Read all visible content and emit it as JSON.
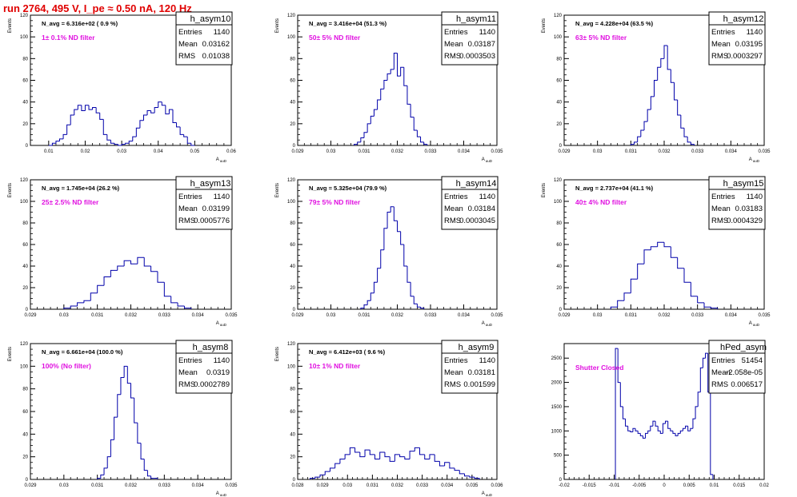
{
  "run_title": "run 2764,   495 V, I_pe ≈ 0.50 nA, 120 Hz",
  "stat_labels": {
    "entries": "Entries",
    "mean": "Mean",
    "rms": "RMS"
  },
  "chart_data": [
    {
      "type": "histogram",
      "name": "h_asym10",
      "navg": "N_avg = 6.316e+02 ( 0.9 %)",
      "filter": "1± 0.1% ND filter",
      "entries": "1140",
      "mean": "0.03162",
      "rms": "0.01038",
      "ylabel": "Events",
      "xlabel": "A_uuD",
      "xlim": [
        0.005,
        0.06
      ],
      "ylim": [
        0,
        120
      ],
      "xticks": [
        0.01,
        0.02,
        0.03,
        0.04,
        0.05,
        0.06
      ],
      "xtick_labels": [
        "0.01",
        "0.02",
        "0.03",
        "0.04",
        "0.05",
        "0.06"
      ],
      "yticks": [
        0,
        20,
        40,
        60,
        80,
        100,
        120
      ],
      "x": [
        0.0105,
        0.0115,
        0.0125,
        0.0135,
        0.0145,
        0.0155,
        0.0165,
        0.0175,
        0.0185,
        0.0195,
        0.0205,
        0.0215,
        0.0225,
        0.0235,
        0.0245,
        0.0255,
        0.0265,
        0.0275,
        0.0285,
        0.0295,
        0.0305,
        0.0315,
        0.0325,
        0.0335,
        0.0345,
        0.0355,
        0.0365,
        0.0375,
        0.0385,
        0.0395,
        0.0405,
        0.0415,
        0.0425,
        0.0435,
        0.0445,
        0.0455,
        0.0465,
        0.0475,
        0.0485,
        0.0495
      ],
      "values": [
        0,
        2,
        4,
        6,
        10,
        19,
        28,
        33,
        37,
        32,
        37,
        33,
        35,
        30,
        24,
        10,
        5,
        2,
        1,
        0,
        1,
        2,
        4,
        8,
        16,
        23,
        28,
        32,
        30,
        35,
        40,
        37,
        29,
        33,
        21,
        17,
        10,
        8,
        2,
        0
      ]
    },
    {
      "type": "histogram",
      "name": "h_asym11",
      "navg": "N_avg = 3.416e+04 (51.3 %)",
      "filter": "50± 5% ND filter",
      "entries": "1140",
      "mean": "0.03187",
      "rms": "0.0003503",
      "ylabel": "Events",
      "xlabel": "A_uuD",
      "xlim": [
        0.029,
        0.035
      ],
      "ylim": [
        0,
        120
      ],
      "xticks": [
        0.029,
        0.03,
        0.031,
        0.032,
        0.033,
        0.034,
        0.035
      ],
      "xtick_labels": [
        "0.029",
        "0.03",
        "0.031",
        "0.032",
        "0.033",
        "0.034",
        "0.035"
      ],
      "yticks": [
        0,
        20,
        40,
        60,
        80,
        100,
        120
      ],
      "x": [
        0.03075,
        0.03085,
        0.03095,
        0.03105,
        0.03115,
        0.03125,
        0.03135,
        0.03145,
        0.03155,
        0.03165,
        0.03175,
        0.03185,
        0.03195,
        0.03205,
        0.03215,
        0.03225,
        0.03235,
        0.03245,
        0.03255,
        0.03265,
        0.03275,
        0.03285
      ],
      "values": [
        1,
        3,
        7,
        12,
        20,
        27,
        33,
        42,
        52,
        60,
        66,
        70,
        85,
        64,
        72,
        55,
        38,
        26,
        14,
        8,
        3,
        1
      ]
    },
    {
      "type": "histogram",
      "name": "h_asym12",
      "navg": "N_avg = 4.228e+04 (63.5 %)",
      "filter": "63± 5% ND filter",
      "entries": "1140",
      "mean": "0.03195",
      "rms": "0.0003297",
      "ylabel": "Events",
      "xlabel": "A_uuD",
      "xlim": [
        0.029,
        0.035
      ],
      "ylim": [
        0,
        120
      ],
      "xticks": [
        0.029,
        0.03,
        0.031,
        0.032,
        0.033,
        0.034,
        0.035
      ],
      "xtick_labels": [
        "0.029",
        "0.03",
        "0.031",
        "0.032",
        "0.033",
        "0.034",
        "0.035"
      ],
      "yticks": [
        0,
        20,
        40,
        60,
        80,
        100,
        120
      ],
      "x": [
        0.03105,
        0.03115,
        0.03125,
        0.03135,
        0.03145,
        0.03155,
        0.03165,
        0.03175,
        0.03185,
        0.03195,
        0.03205,
        0.03215,
        0.03225,
        0.03235,
        0.03245,
        0.03255,
        0.03265,
        0.03275,
        0.03285
      ],
      "values": [
        1,
        3,
        8,
        14,
        22,
        33,
        45,
        60,
        72,
        80,
        92,
        70,
        58,
        42,
        28,
        16,
        8,
        3,
        1
      ]
    },
    {
      "type": "histogram",
      "name": "h_asym13",
      "navg": "N_avg = 1.745e+04 (26.2 %)",
      "filter": "25± 2.5% ND filter",
      "entries": "1140",
      "mean": "0.03199",
      "rms": "0.0005776",
      "ylabel": "Events",
      "xlabel": "A_uuD",
      "xlim": [
        0.029,
        0.035
      ],
      "ylim": [
        0,
        120
      ],
      "xticks": [
        0.029,
        0.03,
        0.031,
        0.032,
        0.033,
        0.034,
        0.035
      ],
      "xtick_labels": [
        "0.029",
        "0.03",
        "0.031",
        "0.032",
        "0.033",
        "0.034",
        "0.035"
      ],
      "yticks": [
        0,
        20,
        40,
        60,
        80,
        100,
        120
      ],
      "x": [
        0.0301,
        0.0303,
        0.0305,
        0.0307,
        0.0309,
        0.0311,
        0.0313,
        0.0315,
        0.0317,
        0.0319,
        0.0321,
        0.0323,
        0.0325,
        0.0327,
        0.0329,
        0.0331,
        0.0333,
        0.0335,
        0.0337
      ],
      "values": [
        1,
        3,
        6,
        8,
        15,
        22,
        30,
        36,
        40,
        45,
        42,
        48,
        40,
        35,
        25,
        12,
        6,
        3,
        1
      ]
    },
    {
      "type": "histogram",
      "name": "h_asym14",
      "navg": "N_avg = 5.325e+04 (79.9 %)",
      "filter": "79± 5% ND filter",
      "entries": "1140",
      "mean": "0.03184",
      "rms": "0.0003045",
      "ylabel": "Events",
      "xlabel": "A_uuD",
      "xlim": [
        0.029,
        0.035
      ],
      "ylim": [
        0,
        120
      ],
      "xticks": [
        0.029,
        0.03,
        0.031,
        0.032,
        0.033,
        0.034,
        0.035
      ],
      "xtick_labels": [
        "0.029",
        "0.03",
        "0.031",
        "0.032",
        "0.033",
        "0.034",
        "0.035"
      ],
      "yticks": [
        0,
        20,
        40,
        60,
        80,
        100,
        120
      ],
      "x": [
        0.03095,
        0.03105,
        0.03115,
        0.03125,
        0.03135,
        0.03145,
        0.03155,
        0.03165,
        0.03175,
        0.03185,
        0.03195,
        0.03205,
        0.03215,
        0.03225,
        0.03235,
        0.03245,
        0.03255,
        0.03265,
        0.03275
      ],
      "values": [
        1,
        4,
        8,
        15,
        25,
        38,
        55,
        75,
        90,
        95,
        82,
        72,
        60,
        40,
        25,
        12,
        5,
        2,
        1
      ]
    },
    {
      "type": "histogram",
      "name": "h_asym15",
      "navg": "N_avg = 2.737e+04 (41.1 %)",
      "filter": "40± 4% ND filter",
      "entries": "1140",
      "mean": "0.03183",
      "rms": "0.0004329",
      "ylabel": "Events",
      "xlabel": "A_uuD",
      "xlim": [
        0.029,
        0.035
      ],
      "ylim": [
        0,
        120
      ],
      "xticks": [
        0.029,
        0.03,
        0.031,
        0.032,
        0.033,
        0.034,
        0.035
      ],
      "xtick_labels": [
        "0.029",
        "0.03",
        "0.031",
        "0.032",
        "0.033",
        "0.034",
        "0.035"
      ],
      "yticks": [
        0,
        20,
        40,
        60,
        80,
        100,
        120
      ],
      "x": [
        0.0305,
        0.0307,
        0.0309,
        0.0311,
        0.0313,
        0.0315,
        0.0317,
        0.0319,
        0.0321,
        0.0323,
        0.0325,
        0.0327,
        0.0329,
        0.0331,
        0.0333,
        0.0335
      ],
      "values": [
        2,
        8,
        15,
        28,
        42,
        55,
        58,
        62,
        58,
        48,
        38,
        25,
        12,
        6,
        2,
        1
      ]
    },
    {
      "type": "histogram",
      "name": "h_asym8",
      "navg": "N_avg = 6.661e+04 (100.0 %)",
      "filter": "100% (No filter)",
      "entries": "1140",
      "mean": "0.0319",
      "rms": "0.0002789",
      "ylabel": "Events",
      "xlabel": "A_uuD",
      "xlim": [
        0.029,
        0.035
      ],
      "ylim": [
        0,
        120
      ],
      "xticks": [
        0.029,
        0.03,
        0.031,
        0.032,
        0.033,
        0.034,
        0.035
      ],
      "xtick_labels": [
        "0.029",
        "0.03",
        "0.031",
        "0.032",
        "0.033",
        "0.034",
        "0.035"
      ],
      "yticks": [
        0,
        20,
        40,
        60,
        80,
        100,
        120
      ],
      "x": [
        0.03105,
        0.03115,
        0.03125,
        0.03135,
        0.03145,
        0.03155,
        0.03165,
        0.03175,
        0.03185,
        0.03195,
        0.03205,
        0.03215,
        0.03225,
        0.03235,
        0.03245,
        0.03255,
        0.03265,
        0.03275
      ],
      "values": [
        1,
        4,
        10,
        20,
        35,
        55,
        75,
        90,
        100,
        85,
        72,
        50,
        32,
        18,
        8,
        3,
        1,
        1
      ]
    },
    {
      "type": "histogram",
      "name": "h_asym9",
      "navg": "N_avg = 6.412e+03 ( 9.6 %)",
      "filter": "10± 1% ND filter",
      "entries": "1140",
      "mean": "0.03181",
      "rms": "0.001599",
      "ylabel": "Events",
      "xlabel": "A_uuD",
      "xlim": [
        0.028,
        0.036
      ],
      "ylim": [
        0,
        120
      ],
      "xticks": [
        0.028,
        0.029,
        0.03,
        0.031,
        0.032,
        0.033,
        0.034,
        0.035,
        0.036
      ],
      "xtick_labels": [
        "0.028",
        "0.029",
        "0.03",
        "0.031",
        "0.032",
        "0.033",
        "0.034",
        "0.035",
        "0.036"
      ],
      "yticks": [
        0,
        20,
        40,
        60,
        80,
        100,
        120
      ],
      "x": [
        0.0286,
        0.0288,
        0.029,
        0.0292,
        0.0294,
        0.0296,
        0.0298,
        0.03,
        0.0302,
        0.0304,
        0.0306,
        0.0308,
        0.031,
        0.0312,
        0.0314,
        0.0316,
        0.0318,
        0.032,
        0.0322,
        0.0324,
        0.0326,
        0.0328,
        0.033,
        0.0332,
        0.0334,
        0.0336,
        0.0338,
        0.034,
        0.0342,
        0.0344,
        0.0346,
        0.0348,
        0.035,
        0.0352
      ],
      "values": [
        1,
        2,
        4,
        7,
        10,
        14,
        18,
        22,
        28,
        24,
        20,
        26,
        22,
        18,
        24,
        20,
        16,
        22,
        20,
        18,
        25,
        28,
        22,
        18,
        22,
        16,
        12,
        15,
        10,
        8,
        5,
        3,
        2,
        1
      ]
    },
    {
      "type": "histogram",
      "name": "hPed_asym",
      "navg": "",
      "filter": "Shutter Closed",
      "entries": "51454",
      "mean": "-2.058e-05",
      "rms": "0.006517",
      "ylabel": "",
      "xlabel": "",
      "xlim": [
        -0.02,
        0.02
      ],
      "ylim": [
        0,
        2800
      ],
      "xticks": [
        -0.02,
        -0.015,
        -0.01,
        -0.005,
        0,
        0.005,
        0.01,
        0.015,
        0.02
      ],
      "xtick_labels": [
        "-0.02",
        "-0.015",
        "-0.01",
        "-0.005",
        "0",
        "0.005",
        "0.01",
        "0.015",
        "0.02"
      ],
      "yticks": [
        0,
        500,
        1000,
        1500,
        2000,
        2500
      ],
      "x": [
        -0.0095,
        -0.009,
        -0.0085,
        -0.008,
        -0.0075,
        -0.007,
        -0.0065,
        -0.006,
        -0.0055,
        -0.005,
        -0.0045,
        -0.004,
        -0.0035,
        -0.003,
        -0.0025,
        -0.002,
        -0.0015,
        -0.001,
        -0.0005,
        0,
        0.0005,
        0.001,
        0.0015,
        0.002,
        0.0025,
        0.003,
        0.0035,
        0.004,
        0.0045,
        0.005,
        0.0055,
        0.006,
        0.0065,
        0.007,
        0.0075,
        0.008,
        0.0085,
        0.009,
        0.0095
      ],
      "values": [
        2700,
        2000,
        1500,
        1250,
        1100,
        1000,
        980,
        1050,
        1000,
        950,
        900,
        850,
        950,
        1000,
        1100,
        1200,
        1100,
        1000,
        950,
        1150,
        1200,
        1050,
        1000,
        950,
        900,
        950,
        1000,
        1050,
        1100,
        1000,
        1050,
        1250,
        1500,
        1800,
        2300,
        2500,
        2600,
        1800,
        100
      ]
    }
  ]
}
